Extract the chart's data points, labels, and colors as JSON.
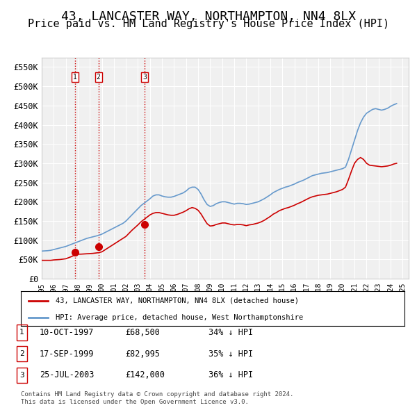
{
  "title": "43, LANCASTER WAY, NORTHAMPTON, NN4 8LX",
  "subtitle": "Price paid vs. HM Land Registry's House Price Index (HPI)",
  "title_fontsize": 13,
  "subtitle_fontsize": 11,
  "background_color": "#ffffff",
  "plot_bg_color": "#f0f0f0",
  "grid_color": "#ffffff",
  "ylim": [
    0,
    575000
  ],
  "yticks": [
    0,
    50000,
    100000,
    150000,
    200000,
    250000,
    300000,
    350000,
    400000,
    450000,
    500000,
    550000
  ],
  "ylabel_format": "£{0}K",
  "xlim_start": 1995.0,
  "xlim_end": 2025.5,
  "sale_dates": [
    1997.78,
    1999.72,
    2003.56
  ],
  "sale_prices": [
    68500,
    82995,
    142000
  ],
  "sale_labels": [
    "1",
    "2",
    "3"
  ],
  "vline_color": "#cc0000",
  "sale_marker_color": "#cc0000",
  "legend_label_red": "43, LANCASTER WAY, NORTHAMPTON, NN4 8LX (detached house)",
  "legend_label_blue": "HPI: Average price, detached house, West Northamptonshire",
  "table_rows": [
    [
      "1",
      "10-OCT-1997",
      "£68,500",
      "34% ↓ HPI"
    ],
    [
      "2",
      "17-SEP-1999",
      "£82,995",
      "35% ↓ HPI"
    ],
    [
      "3",
      "25-JUL-2003",
      "£142,000",
      "36% ↓ HPI"
    ]
  ],
  "footer": "Contains HM Land Registry data © Crown copyright and database right 2024.\nThis data is licensed under the Open Government Licence v3.0.",
  "red_line_color": "#cc0000",
  "blue_line_color": "#6699cc",
  "hpi_years": [
    1995.0,
    1995.25,
    1995.5,
    1995.75,
    1996.0,
    1996.25,
    1996.5,
    1996.75,
    1997.0,
    1997.25,
    1997.5,
    1997.75,
    1998.0,
    1998.25,
    1998.5,
    1998.75,
    1999.0,
    1999.25,
    1999.5,
    1999.75,
    2000.0,
    2000.25,
    2000.5,
    2000.75,
    2001.0,
    2001.25,
    2001.5,
    2001.75,
    2002.0,
    2002.25,
    2002.5,
    2002.75,
    2003.0,
    2003.25,
    2003.5,
    2003.75,
    2004.0,
    2004.25,
    2004.5,
    2004.75,
    2005.0,
    2005.25,
    2005.5,
    2005.75,
    2006.0,
    2006.25,
    2006.5,
    2006.75,
    2007.0,
    2007.25,
    2007.5,
    2007.75,
    2008.0,
    2008.25,
    2008.5,
    2008.75,
    2009.0,
    2009.25,
    2009.5,
    2009.75,
    2010.0,
    2010.25,
    2010.5,
    2010.75,
    2011.0,
    2011.25,
    2011.5,
    2011.75,
    2012.0,
    2012.25,
    2012.5,
    2012.75,
    2013.0,
    2013.25,
    2013.5,
    2013.75,
    2014.0,
    2014.25,
    2014.5,
    2014.75,
    2015.0,
    2015.25,
    2015.5,
    2015.75,
    2016.0,
    2016.25,
    2016.5,
    2016.75,
    2017.0,
    2017.25,
    2017.5,
    2017.75,
    2018.0,
    2018.25,
    2018.5,
    2018.75,
    2019.0,
    2019.25,
    2019.5,
    2019.75,
    2020.0,
    2020.25,
    2020.5,
    2020.75,
    2021.0,
    2021.25,
    2021.5,
    2021.75,
    2022.0,
    2022.25,
    2022.5,
    2022.75,
    2023.0,
    2023.25,
    2023.5,
    2023.75,
    2024.0,
    2024.25,
    2024.5
  ],
  "hpi_values": [
    72000,
    72500,
    73000,
    74000,
    76000,
    78000,
    80000,
    82000,
    84000,
    87000,
    90000,
    93000,
    96000,
    99000,
    102000,
    105000,
    107000,
    109000,
    111000,
    113000,
    116000,
    120000,
    124000,
    128000,
    132000,
    136000,
    140000,
    144000,
    150000,
    158000,
    166000,
    174000,
    182000,
    190000,
    196000,
    202000,
    208000,
    215000,
    218000,
    218000,
    215000,
    213000,
    212000,
    212000,
    214000,
    217000,
    220000,
    223000,
    228000,
    235000,
    238000,
    238000,
    232000,
    220000,
    205000,
    193000,
    188000,
    190000,
    195000,
    198000,
    200000,
    200000,
    198000,
    196000,
    194000,
    196000,
    196000,
    195000,
    193000,
    194000,
    196000,
    198000,
    200000,
    204000,
    208000,
    213000,
    218000,
    224000,
    228000,
    232000,
    235000,
    238000,
    240000,
    243000,
    246000,
    250000,
    253000,
    256000,
    260000,
    264000,
    268000,
    270000,
    272000,
    274000,
    275000,
    276000,
    278000,
    280000,
    282000,
    284000,
    286000,
    290000,
    310000,
    335000,
    360000,
    385000,
    405000,
    420000,
    430000,
    435000,
    440000,
    442000,
    440000,
    438000,
    440000,
    443000,
    448000,
    452000,
    455000
  ],
  "price_years": [
    1995.0,
    1995.25,
    1995.5,
    1995.75,
    1996.0,
    1996.25,
    1996.5,
    1996.75,
    1997.0,
    1997.25,
    1997.5,
    1997.75,
    1998.0,
    1998.25,
    1998.5,
    1998.75,
    1999.0,
    1999.25,
    1999.5,
    1999.75,
    2000.0,
    2000.25,
    2000.5,
    2000.75,
    2001.0,
    2001.25,
    2001.5,
    2001.75,
    2002.0,
    2002.25,
    2002.5,
    2002.75,
    2003.0,
    2003.25,
    2003.5,
    2003.75,
    2004.0,
    2004.25,
    2004.5,
    2004.75,
    2005.0,
    2005.25,
    2005.5,
    2005.75,
    2006.0,
    2006.25,
    2006.5,
    2006.75,
    2007.0,
    2007.25,
    2007.5,
    2007.75,
    2008.0,
    2008.25,
    2008.5,
    2008.75,
    2009.0,
    2009.25,
    2009.5,
    2009.75,
    2010.0,
    2010.25,
    2010.5,
    2010.75,
    2011.0,
    2011.25,
    2011.5,
    2011.75,
    2012.0,
    2012.25,
    2012.5,
    2012.75,
    2013.0,
    2013.25,
    2013.5,
    2013.75,
    2014.0,
    2014.25,
    2014.5,
    2014.75,
    2015.0,
    2015.25,
    2015.5,
    2015.75,
    2016.0,
    2016.25,
    2016.5,
    2016.75,
    2017.0,
    2017.25,
    2017.5,
    2017.75,
    2018.0,
    2018.25,
    2018.5,
    2018.75,
    2019.0,
    2019.25,
    2019.5,
    2019.75,
    2020.0,
    2020.25,
    2020.5,
    2020.75,
    2021.0,
    2021.25,
    2021.5,
    2021.75,
    2022.0,
    2022.25,
    2022.5,
    2022.75,
    2023.0,
    2023.25,
    2023.5,
    2023.75,
    2024.0,
    2024.25,
    2024.5
  ],
  "price_values": [
    48000,
    48000,
    48000,
    48000,
    49000,
    49500,
    50000,
    51000,
    52000,
    55000,
    58000,
    62000,
    64000,
    64000,
    64500,
    65000,
    65500,
    66000,
    67000,
    68000,
    70000,
    75000,
    80000,
    85000,
    90000,
    95000,
    100000,
    105000,
    110000,
    118000,
    126000,
    133000,
    140000,
    148000,
    154000,
    160000,
    166000,
    170000,
    172000,
    172000,
    170000,
    168000,
    166000,
    165000,
    165000,
    167000,
    170000,
    173000,
    177000,
    182000,
    185000,
    183000,
    178000,
    168000,
    155000,
    143000,
    137000,
    138000,
    141000,
    143000,
    145000,
    145000,
    143000,
    141000,
    140000,
    141000,
    141000,
    140000,
    138000,
    140000,
    141000,
    143000,
    145000,
    148000,
    152000,
    157000,
    162000,
    168000,
    172000,
    177000,
    180000,
    183000,
    185000,
    188000,
    191000,
    195000,
    198000,
    202000,
    206000,
    210000,
    213000,
    215000,
    217000,
    218000,
    219000,
    220000,
    222000,
    224000,
    226000,
    229000,
    232000,
    238000,
    258000,
    280000,
    300000,
    310000,
    315000,
    310000,
    300000,
    295000,
    294000,
    293000,
    292000,
    291000,
    292000,
    293000,
    295000,
    298000,
    300000
  ]
}
